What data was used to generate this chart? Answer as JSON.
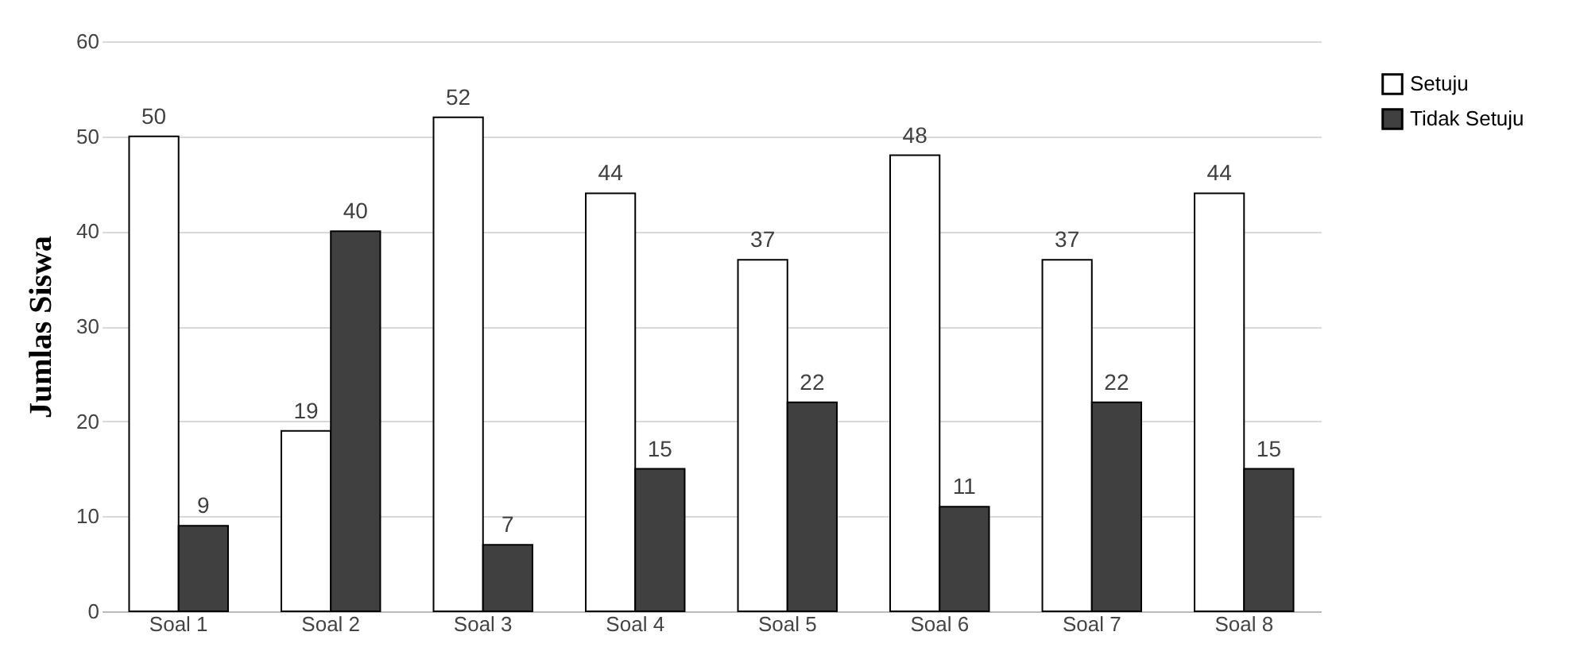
{
  "chart_data": {
    "type": "bar",
    "ylabel": "Jumlas Siswa",
    "categories": [
      "Soal 1",
      "Soal 2",
      "Soal 3",
      "Soal 4",
      "Soal 5",
      "Soal 6",
      "Soal 7",
      "Soal 8"
    ],
    "series": [
      {
        "name": "Setuju",
        "color": "#ffffff",
        "values": [
          50,
          19,
          52,
          44,
          37,
          48,
          37,
          44
        ]
      },
      {
        "name": "Tidak Setuju",
        "color": "#404040",
        "values": [
          9,
          40,
          7,
          15,
          22,
          11,
          22,
          15
        ]
      }
    ],
    "ylim": [
      0,
      60
    ],
    "yticks": [
      0,
      10,
      20,
      30,
      40,
      50,
      60
    ],
    "grid": "y",
    "legend": "right",
    "data_labels": true
  }
}
